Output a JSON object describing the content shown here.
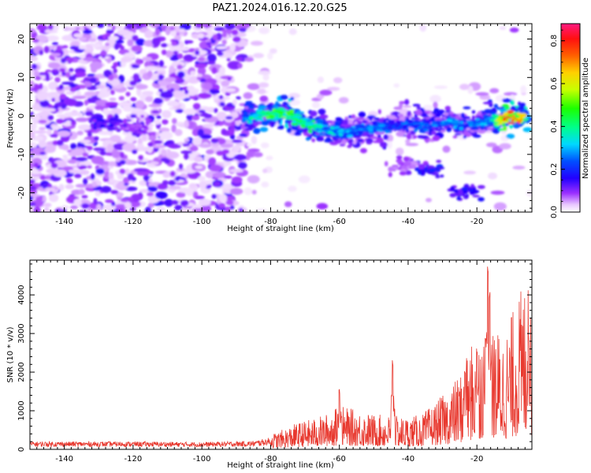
{
  "title": "PAZ1.2024.016.12.20.G25",
  "chart_data": [
    {
      "type": "heatmap",
      "xlabel": "Height of straight line (km)",
      "ylabel": "Frequency (Hz)",
      "xlim": [
        -150,
        -4
      ],
      "ylim": [
        -25,
        24
      ],
      "xticks": [
        -140,
        -120,
        -100,
        -80,
        -60,
        -40,
        -20
      ],
      "yticks": [
        -20,
        -10,
        0,
        10,
        20
      ],
      "colorbar": {
        "label": "Normalized spectral amplitude",
        "range": [
          0,
          0.88
        ],
        "ticks": [
          0.0,
          0.2,
          0.4,
          0.6,
          0.8
        ],
        "colormap": "gist_rainbow_r"
      },
      "ridge": [
        {
          "x": -88,
          "y": -0.5,
          "v": 0.35
        },
        {
          "x": -84,
          "y": 0.0,
          "v": 0.45
        },
        {
          "x": -80,
          "y": 0.5,
          "v": 0.55
        },
        {
          "x": -76,
          "y": 0.5,
          "v": 0.6
        },
        {
          "x": -72,
          "y": -1.0,
          "v": 0.5
        },
        {
          "x": -68,
          "y": -2.5,
          "v": 0.45
        },
        {
          "x": -64,
          "y": -3.5,
          "v": 0.4
        },
        {
          "x": -60,
          "y": -4.5,
          "v": 0.35
        },
        {
          "x": -56,
          "y": -4.0,
          "v": 0.3
        },
        {
          "x": -52,
          "y": -3.5,
          "v": 0.3
        },
        {
          "x": -48,
          "y": -3.0,
          "v": 0.3
        },
        {
          "x": -44,
          "y": -2.5,
          "v": 0.25
        },
        {
          "x": -40,
          "y": -2.0,
          "v": 0.28
        },
        {
          "x": -36,
          "y": -2.5,
          "v": 0.3
        },
        {
          "x": -32,
          "y": -2.0,
          "v": 0.3
        },
        {
          "x": -28,
          "y": -1.5,
          "v": 0.32
        },
        {
          "x": -24,
          "y": -2.5,
          "v": 0.3
        },
        {
          "x": -20,
          "y": -2.0,
          "v": 0.3
        },
        {
          "x": -16,
          "y": -1.0,
          "v": 0.35
        },
        {
          "x": -12,
          "y": -0.5,
          "v": 0.88
        },
        {
          "x": -8,
          "y": -0.5,
          "v": 0.8
        },
        {
          "x": -5,
          "y": -0.3,
          "v": 0.5
        }
      ],
      "blobs": [
        {
          "x": -128,
          "y": -2,
          "v": 0.18
        },
        {
          "x": -120,
          "y": -3,
          "v": 0.12
        },
        {
          "x": -34,
          "y": -14,
          "v": 0.2
        },
        {
          "x": -23,
          "y": -20,
          "v": 0.18
        },
        {
          "x": -41,
          "y": -13,
          "v": 0.1
        }
      ]
    },
    {
      "type": "line",
      "xlabel": "Height of straight line (km)",
      "ylabel": "SNR (10 * v/v)",
      "xlim": [
        -150,
        -4
      ],
      "ylim": [
        0,
        4900
      ],
      "xticks": [
        -140,
        -120,
        -100,
        -80,
        -60,
        -40,
        -20
      ],
      "yticks": [
        0,
        1000,
        2000,
        3000,
        4000
      ],
      "color": "#e8392f",
      "envelope": [
        {
          "x": -150,
          "y": 150
        },
        {
          "x": -120,
          "y": 150
        },
        {
          "x": -100,
          "y": 140
        },
        {
          "x": -85,
          "y": 160
        },
        {
          "x": -78,
          "y": 260
        },
        {
          "x": -72,
          "y": 400
        },
        {
          "x": -68,
          "y": 450
        },
        {
          "x": -64,
          "y": 520
        },
        {
          "x": -60,
          "y": 650
        },
        {
          "x": -55,
          "y": 580
        },
        {
          "x": -50,
          "y": 520
        },
        {
          "x": -45,
          "y": 500
        },
        {
          "x": -40,
          "y": 480
        },
        {
          "x": -36,
          "y": 520
        },
        {
          "x": -32,
          "y": 700
        },
        {
          "x": -28,
          "y": 900
        },
        {
          "x": -24,
          "y": 1200
        },
        {
          "x": -22,
          "y": 1500
        },
        {
          "x": -20,
          "y": 1700
        },
        {
          "x": -18,
          "y": 1900
        },
        {
          "x": -16,
          "y": 1800
        },
        {
          "x": -14,
          "y": 1800
        },
        {
          "x": -12,
          "y": 1700
        },
        {
          "x": -10,
          "y": 2000
        },
        {
          "x": -8,
          "y": 2300
        },
        {
          "x": -6,
          "y": 2500
        },
        {
          "x": -4,
          "y": 2400
        }
      ],
      "spikes": [
        {
          "x": -60,
          "y": 1600
        },
        {
          "x": -44.5,
          "y": 2350
        },
        {
          "x": -23.5,
          "y": 2100
        },
        {
          "x": -20,
          "y": 2700
        },
        {
          "x": -17.5,
          "y": 3000
        },
        {
          "x": -16.8,
          "y": 4900
        },
        {
          "x": -16.3,
          "y": 4200
        },
        {
          "x": -5,
          "y": 3000
        }
      ]
    }
  ]
}
